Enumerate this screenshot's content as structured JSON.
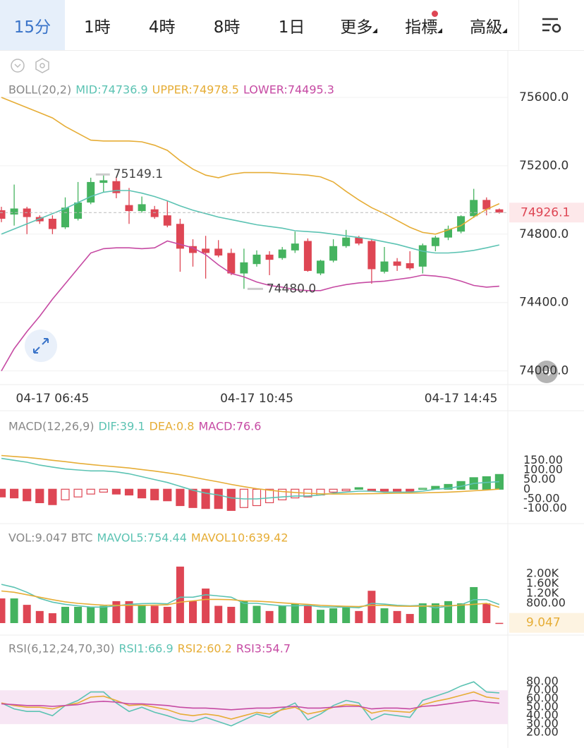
{
  "toolbar": {
    "tabs": [
      "15分",
      "1時",
      "4時",
      "8時",
      "1日",
      "更多",
      "指標",
      "高級"
    ],
    "active_tab": 0
  },
  "chart_data": [
    {
      "type": "candlestick",
      "title": "BOLL(20,2)",
      "categories": [
        null,
        null,
        null,
        null,
        "04-17 06:45",
        null,
        null,
        null,
        null,
        null,
        null,
        null,
        null,
        null,
        null,
        null,
        null,
        null,
        null,
        null,
        "04-17 10:45",
        null,
        null,
        null,
        null,
        null,
        null,
        null,
        null,
        null,
        null,
        null,
        null,
        null,
        null,
        null,
        "04-17 14:45",
        null,
        null,
        null
      ],
      "open": [
        74940,
        74915,
        74950,
        74900,
        74890,
        74840,
        74890,
        74985,
        75100,
        75110,
        74970,
        74935,
        74945,
        74910,
        74860,
        74730,
        74715,
        74715,
        74690,
        74570,
        74625,
        74680,
        74660,
        74705,
        74760,
        74570,
        74645,
        74730,
        74780,
        74760,
        74580,
        74640,
        74630,
        74610,
        74730,
        74780,
        74815,
        74905,
        75000,
        74945
      ],
      "high": [
        74960,
        75090,
        74960,
        74910,
        74910,
        75015,
        75105,
        75130,
        75149.1,
        75130,
        75070,
        75020,
        74965,
        74995,
        74890,
        74770,
        74790,
        74765,
        74715,
        74715,
        74705,
        74700,
        74725,
        74815,
        74775,
        74650,
        74770,
        74825,
        74790,
        74770,
        74725,
        74660,
        74700,
        74745,
        74790,
        74850,
        74910,
        75065,
        75015,
        74950
      ],
      "low": [
        74870,
        74850,
        74800,
        74860,
        74800,
        74830,
        74880,
        74975,
        75045,
        75010,
        74860,
        74925,
        74890,
        74840,
        74580,
        74610,
        74540,
        74665,
        74560,
        74480,
        74610,
        74560,
        74650,
        74690,
        74580,
        74560,
        74635,
        74720,
        74735,
        74510,
        74570,
        74585,
        74590,
        74570,
        74700,
        74765,
        74805,
        74895,
        74910,
        74920
      ],
      "close": [
        74890,
        74950,
        74900,
        74875,
        74830,
        74955,
        74985,
        75105,
        75115,
        75040,
        74935,
        74975,
        74900,
        74850,
        74715,
        74690,
        74690,
        74675,
        74570,
        74635,
        74680,
        74650,
        74710,
        74745,
        74585,
        74645,
        74730,
        74780,
        74745,
        74595,
        74640,
        74615,
        74600,
        74735,
        74780,
        74830,
        74905,
        75000,
        74945,
        74926.1
      ],
      "max_label": "75149.1",
      "min_label": "74480.0",
      "last_label": "74926.1",
      "up_color": "#45b35f",
      "down_color": "#de4654",
      "series": [
        {
          "name": "MID:74736.9",
          "color": "#5cc3b3",
          "values": [
            74800,
            74830,
            74860,
            74890,
            74920,
            74950,
            74985,
            75020,
            75045,
            75055,
            75055,
            75040,
            75020,
            74995,
            74965,
            74940,
            74920,
            74900,
            74885,
            74870,
            74855,
            74845,
            74835,
            74820,
            74815,
            74810,
            74800,
            74790,
            74780,
            74770,
            74755,
            74740,
            74720,
            74700,
            74690,
            74690,
            74695,
            74705,
            74720,
            74736.9
          ]
        },
        {
          "name": "UPPER:74978.5",
          "color": "#e6ad36",
          "values": [
            75600,
            75570,
            75540,
            75510,
            75480,
            75430,
            75390,
            75350,
            75345,
            75345,
            75345,
            75340,
            75320,
            75290,
            75230,
            75180,
            75145,
            75130,
            75150,
            75160,
            75160,
            75160,
            75155,
            75150,
            75145,
            75135,
            75105,
            75050,
            75000,
            74955,
            74920,
            74880,
            74840,
            74810,
            74800,
            74825,
            74850,
            74900,
            74945,
            74978.5
          ]
        },
        {
          "name": "LOWER:74495.3",
          "color": "#c64aa3",
          "values": [
            74000,
            74130,
            74230,
            74320,
            74420,
            74510,
            74600,
            74690,
            74715,
            74720,
            74720,
            74715,
            74720,
            74760,
            74740,
            74720,
            74680,
            74620,
            74570,
            74550,
            74520,
            74500,
            74490,
            74475,
            74470,
            74470,
            74490,
            74505,
            74515,
            74520,
            74525,
            74535,
            74545,
            74560,
            74555,
            74545,
            74525,
            74500,
            74490,
            74495.3
          ]
        }
      ],
      "ylim": [
        73920,
        75860
      ],
      "yticks": [
        {
          "value": 74000,
          "label": "74000.0"
        },
        {
          "value": 74400,
          "label": "74400.0"
        },
        {
          "value": 74800,
          "label": "74800.0"
        },
        {
          "value": 75200,
          "label": "75200.0"
        },
        {
          "value": 75600,
          "label": "75600.0"
        }
      ],
      "grid": true
    },
    {
      "type": "macd",
      "title": "MACD(12,26,9)",
      "up_color": "#45b35f",
      "down_color": "#de4654",
      "series": [
        {
          "name": "DIF:39.1",
          "color": "#5cc3b3",
          "values": [
            160,
            150,
            140,
            125,
            115,
            105,
            100,
            95,
            95,
            90,
            80,
            65,
            50,
            35,
            15,
            -5,
            -20,
            -30,
            -45,
            -50,
            -50,
            -45,
            -40,
            -35,
            -35,
            -30,
            -20,
            -15,
            -10,
            -10,
            -15,
            -15,
            -15,
            -10,
            0,
            5,
            15,
            30,
            35,
            39.1
          ]
        },
        {
          "name": "DEA:0.8",
          "color": "#e6ad36",
          "values": [
            175,
            170,
            165,
            158,
            150,
            143,
            135,
            128,
            122,
            116,
            110,
            102,
            94,
            85,
            75,
            63,
            50,
            38,
            25,
            13,
            3,
            -5,
            -12,
            -17,
            -21,
            -24,
            -25,
            -25,
            -24,
            -23,
            -22,
            -21,
            -20,
            -19,
            -17,
            -15,
            -12,
            -8,
            -4,
            0.8
          ]
        },
        {
          "name": "MACD:76.6",
          "color": "#c64aa3",
          "style": "bar",
          "values": [
            -40,
            -45,
            -60,
            -70,
            -80,
            -55,
            -40,
            -25,
            -15,
            -25,
            -30,
            -45,
            -55,
            -60,
            -85,
            -95,
            -100,
            -100,
            -110,
            -95,
            -85,
            -70,
            -55,
            -45,
            -40,
            -30,
            -15,
            -8,
            8,
            -10,
            -10,
            -10,
            -10,
            5,
            15,
            25,
            40,
            60,
            65,
            76.6
          ]
        }
      ],
      "ylim": [
        -160,
        250
      ],
      "yticks": [
        {
          "value": -100,
          "label": "-100.00"
        },
        {
          "value": -50,
          "label": "-50.00"
        },
        0,
        {
          "value": 50,
          "label": "50.00"
        },
        {
          "value": 100,
          "label": "100.00"
        },
        {
          "value": 150,
          "label": "150.00"
        }
      ],
      "grid": false
    },
    {
      "type": "volume",
      "title": "VOL:9.047 BTC",
      "last_label": "9.047",
      "values": [
        1000,
        1000,
        740,
        490,
        400,
        660,
        660,
        660,
        700,
        890,
        890,
        700,
        700,
        660,
        2290,
        890,
        1400,
        700,
        660,
        890,
        700,
        490,
        700,
        800,
        700,
        540,
        600,
        660,
        490,
        1310,
        600,
        490,
        370,
        800,
        800,
        890,
        800,
        1460,
        800,
        9.047
      ],
      "series": [
        {
          "name": "MAVOL5:754.44",
          "color": "#5cc3b3",
          "values": [
            1570,
            1450,
            1250,
            1000,
            850,
            760,
            700,
            650,
            650,
            700,
            760,
            790,
            800,
            780,
            1050,
            1050,
            1150,
            1100,
            1050,
            800,
            800,
            750,
            700,
            700,
            720,
            660,
            650,
            650,
            620,
            800,
            770,
            720,
            700,
            720,
            620,
            680,
            740,
            950,
            950,
            754.44
          ]
        },
        {
          "name": "MAVOL10:639.42",
          "color": "#e6ad36",
          "values": [
            1300,
            1250,
            1150,
            1050,
            950,
            860,
            800,
            760,
            730,
            720,
            720,
            720,
            730,
            740,
            850,
            900,
            960,
            960,
            950,
            900,
            890,
            860,
            820,
            790,
            760,
            720,
            700,
            680,
            670,
            720,
            720,
            690,
            680,
            690,
            700,
            700,
            730,
            760,
            800,
            639.42
          ]
        }
      ],
      "ylim": [
        0,
        2660
      ],
      "yticks": [
        {
          "value": 800,
          "label": "800.00"
        },
        {
          "value": 1200,
          "label": "1.20K"
        },
        {
          "value": 1600,
          "label": "1.60K"
        },
        {
          "value": 2000,
          "label": "2.00K"
        }
      ],
      "grid": false
    },
    {
      "type": "line",
      "title": "RSI(6,12,24,70,30)",
      "band": [
        30,
        70
      ],
      "band_color": "#f7e6f4",
      "series": [
        {
          "name": "RSI1:66.9",
          "color": "#5cc3b3",
          "values": [
            55,
            48,
            45,
            45,
            40,
            52,
            58,
            68,
            68,
            55,
            45,
            50,
            44,
            40,
            35,
            33,
            38,
            33,
            28,
            35,
            42,
            38,
            48,
            55,
            35,
            42,
            52,
            58,
            55,
            35,
            42,
            40,
            38,
            58,
            63,
            68,
            75,
            80,
            68,
            66.9
          ]
        },
        {
          "name": "RSI2:60.2",
          "color": "#e6ad36",
          "values": [
            55,
            52,
            50,
            50,
            48,
            52,
            55,
            62,
            63,
            58,
            52,
            53,
            50,
            47,
            42,
            40,
            42,
            40,
            36,
            40,
            44,
            42,
            47,
            50,
            42,
            45,
            50,
            53,
            52,
            43,
            46,
            45,
            44,
            53,
            57,
            60,
            64,
            68,
            62,
            60.2
          ]
        },
        {
          "name": "RSI3:54.7",
          "color": "#c64aa3",
          "values": [
            54,
            53,
            52,
            52,
            51,
            52,
            53,
            56,
            57,
            56,
            54,
            54,
            53,
            52,
            50,
            49,
            49,
            48,
            47,
            48,
            49,
            49,
            50,
            51,
            49,
            49,
            50,
            51,
            51,
            48,
            49,
            49,
            48,
            51,
            52,
            54,
            56,
            58,
            56,
            54.7
          ]
        }
      ],
      "ylim": [
        6,
        93.5
      ],
      "yticks": [
        {
          "value": 20,
          "label": "20.00"
        },
        {
          "value": 30,
          "label": "30.00"
        },
        {
          "value": 40,
          "label": "40.00"
        },
        {
          "value": 50,
          "label": "50.00"
        },
        {
          "value": 60,
          "label": "60.00"
        },
        {
          "value": 70,
          "label": "70.00"
        },
        {
          "value": 80,
          "label": "80.00"
        }
      ],
      "grid": false
    }
  ]
}
